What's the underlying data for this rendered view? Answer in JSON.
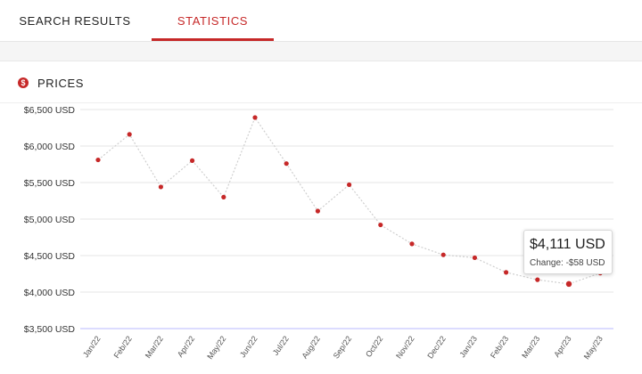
{
  "tabs": [
    {
      "label": "SEARCH RESULTS",
      "active": false
    },
    {
      "label": "STATISTICS",
      "active": true
    }
  ],
  "panel": {
    "title": "PRICES",
    "icon": "dollar-icon",
    "accent": "#c62828"
  },
  "tooltip": {
    "price": "$4,111 USD",
    "change_label": "Change:",
    "change_value": "-$58 USD"
  },
  "chart_data": {
    "type": "line",
    "title": "",
    "xlabel": "",
    "ylabel": "",
    "categories": [
      "Jan/22",
      "Feb/22",
      "Mar/22",
      "Apr/22",
      "May/22",
      "Jun/22",
      "Jul/22",
      "Aug/22",
      "Sep/22",
      "Oct/22",
      "Nov/22",
      "Dec/22",
      "Jan/23",
      "Feb/23",
      "Mar/23",
      "Apr/23",
      "May/23"
    ],
    "series": [
      {
        "values": [
          5810,
          6160,
          5440,
          5800,
          5300,
          6390,
          5760,
          5110,
          5470,
          4920,
          4660,
          4510,
          4470,
          4270,
          4169,
          4111,
          4260
        ]
      }
    ],
    "y_ticks": [
      "$3,500 USD",
      "$4,000 USD",
      "$4,500 USD",
      "$5,000 USD",
      "$5,500 USD",
      "$6,000 USD",
      "$6,500 USD"
    ],
    "y_tick_values": [
      3500,
      4000,
      4500,
      5000,
      5500,
      6000,
      6500
    ],
    "ylim": [
      3500,
      6500
    ],
    "highlight_index": 15,
    "grid": true,
    "colors": {
      "point": "#c62828",
      "line": "#cfcfcf",
      "grid": "#e6e6e6",
      "baseline": "#b9b9ff"
    }
  }
}
